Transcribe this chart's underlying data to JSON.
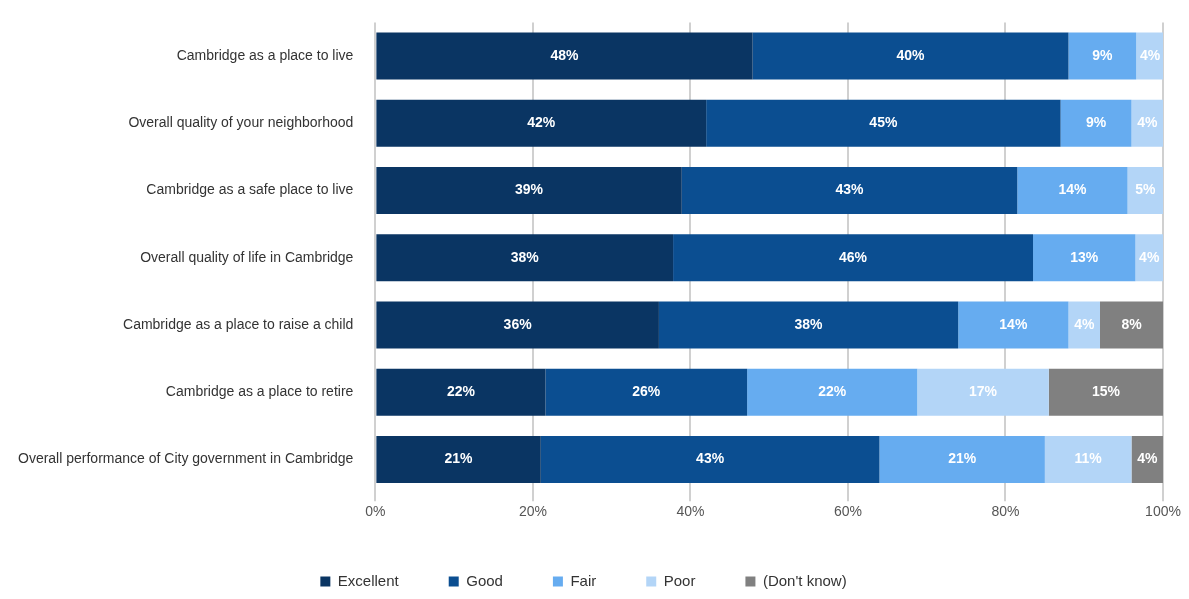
{
  "chart_data": {
    "type": "bar",
    "orientation": "horizontal",
    "stacked": true,
    "categories": [
      "Cambridge as a place to live",
      "Overall quality of your neighborhood",
      "Cambridge as a safe place to live",
      "Overall quality of life in Cambridge",
      "Cambridge as a place to raise a child",
      "Cambridge as a place to retire",
      "Overall performance of City government in Cambridge"
    ],
    "series": [
      {
        "name": "Excellent",
        "color": "#0a3563",
        "values": [
          47.9,
          42,
          38.9,
          37.8,
          36,
          21.6,
          21
        ],
        "value_labels": [
          "48%",
          "42%",
          "39%",
          "38%",
          "36%",
          "22%",
          "21%"
        ]
      },
      {
        "name": "Good",
        "color": "#0b4e91",
        "values": [
          40.1,
          45,
          42.6,
          45.7,
          38,
          25.6,
          43
        ],
        "value_labels": [
          "40%",
          "45%",
          "43%",
          "46%",
          "38%",
          "26%",
          "43%"
        ]
      },
      {
        "name": "Fair",
        "color": "#66acf0",
        "values": [
          8.6,
          9,
          14,
          13,
          14,
          21.6,
          21
        ],
        "value_labels": [
          "9%",
          "9%",
          "14%",
          "13%",
          "14%",
          "22%",
          "21%"
        ]
      },
      {
        "name": "Poor",
        "color": "#b3d5f7",
        "values": [
          3.5,
          4,
          4.5,
          3.5,
          4,
          16.7,
          11
        ],
        "value_labels": [
          "4%",
          "4%",
          "5%",
          "4%",
          "4%",
          "17%",
          "11%"
        ]
      },
      {
        "name": "(Don't know)",
        "color": "#808080",
        "values": [
          null,
          null,
          null,
          null,
          8,
          14.5,
          4
        ],
        "value_labels": [
          null,
          null,
          null,
          null,
          "8%",
          "15%",
          "4%"
        ]
      }
    ],
    "xlim": [
      0,
      100
    ],
    "xticks": [
      {
        "value": 0,
        "label": "0%"
      },
      {
        "value": 20,
        "label": "20%"
      },
      {
        "value": 40,
        "label": "40%"
      },
      {
        "value": 60,
        "label": "60%"
      },
      {
        "value": 80,
        "label": "80%"
      },
      {
        "value": 100,
        "label": "100%"
      }
    ],
    "grid": "x",
    "legend": "bottom"
  }
}
